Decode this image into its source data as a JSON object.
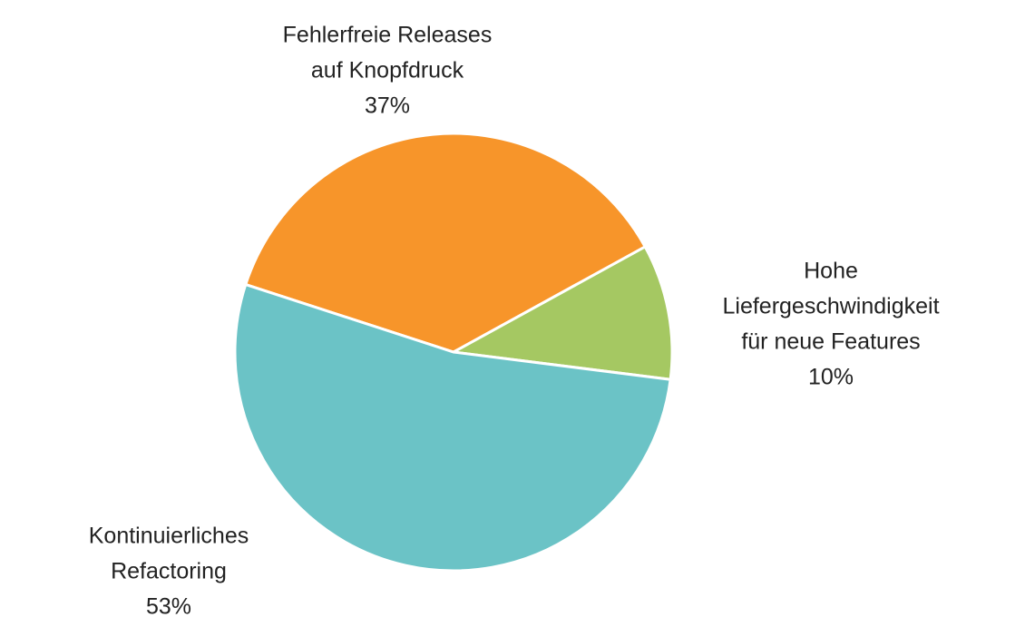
{
  "chart_data": {
    "type": "pie",
    "categories": [
      [
        "Fehlerfreie Releases",
        "auf Knopfdruck"
      ],
      [
        "Hohe",
        "Liefergeschwindigkeit",
        "für neue Features"
      ],
      [
        "Kontinuierliches",
        "Refactoring"
      ]
    ],
    "values": [
      37,
      10,
      53
    ],
    "value_labels": [
      "37%",
      "10%",
      "53%"
    ],
    "colors": [
      "#f7952a",
      "#a5c862",
      "#6bc3c6"
    ]
  }
}
